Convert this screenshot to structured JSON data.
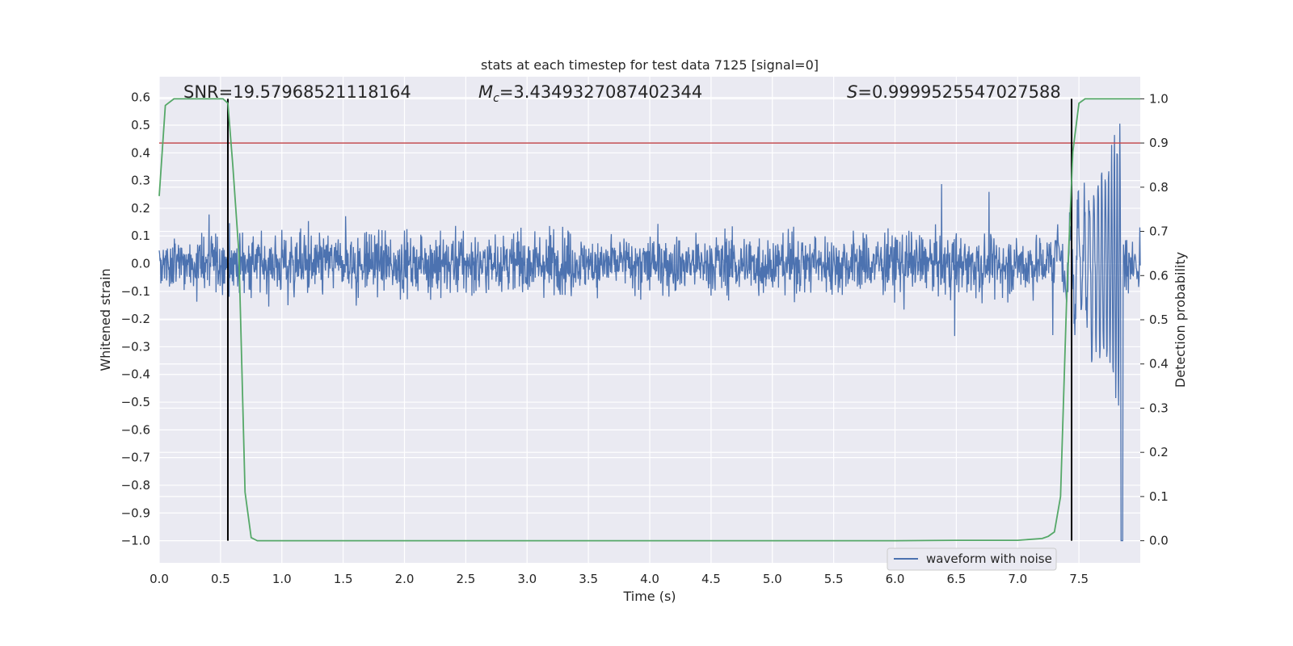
{
  "chart_data": {
    "type": "line",
    "title": "stats at each timestep for test data 7125 [signal=0]",
    "xlabel": "Time (s)",
    "ylabel_left": "Whitened strain",
    "ylabel_right": "Detection probability",
    "xlim": [
      0.0,
      8.0
    ],
    "ylim_left": [
      -1.08,
      0.675
    ],
    "ylim_right": [
      -0.05,
      1.05
    ],
    "x_ticks": [
      "0.0",
      "0.5",
      "1.0",
      "1.5",
      "2.0",
      "2.5",
      "3.0",
      "3.5",
      "4.0",
      "4.5",
      "5.0",
      "5.5",
      "6.0",
      "6.5",
      "7.0",
      "7.5"
    ],
    "y_left_ticks": [
      "0.6",
      "0.5",
      "0.4",
      "0.3",
      "0.2",
      "0.1",
      "0.0",
      "−0.1",
      "−0.2",
      "−0.3",
      "−0.4",
      "−0.5",
      "−0.6",
      "−0.7",
      "−0.8",
      "−0.9",
      "−1.0"
    ],
    "y_right_ticks": [
      "1.0",
      "0.9",
      "0.8",
      "0.7",
      "0.6",
      "0.5",
      "0.4",
      "0.3",
      "0.2",
      "0.1",
      "0.0"
    ],
    "grid": true,
    "legend_location": "lower-right",
    "annotations": {
      "snr": "SNR=19.57968521118164",
      "mc": "=3.4349327087402344",
      "mc_symbol": "M",
      "mc_sub": "c",
      "s": "=0.9999525547027588",
      "s_symbol": "S"
    },
    "series": [
      {
        "name": "waveform with noise",
        "axis": "left",
        "color": "#4c72b0",
        "description_values": {
          "noise_amplitude_typical": 0.2,
          "chirp_start_s": 7.3,
          "chirp_end_s": 7.85
        }
      },
      {
        "axis": "right",
        "color": "#55a868",
        "x": [
          0.0,
          0.05,
          0.12,
          0.45,
          0.52,
          0.56,
          0.6,
          0.65,
          0.7,
          0.75,
          0.8,
          1.0,
          2.0,
          3.0,
          4.0,
          5.0,
          6.0,
          6.5,
          7.0,
          7.2,
          7.25,
          7.3,
          7.35,
          7.4,
          7.45,
          7.5,
          7.55,
          8.0
        ],
        "values": [
          0.78,
          0.985,
          1.0,
          1.0,
          1.0,
          0.99,
          0.85,
          0.65,
          0.11,
          0.007,
          0.0,
          0.0,
          0.0,
          0.0,
          0.0,
          0.0,
          0.0,
          0.001,
          0.001,
          0.005,
          0.01,
          0.02,
          0.1,
          0.55,
          0.88,
          0.99,
          1.0,
          1.0
        ]
      }
    ],
    "threshold_line": {
      "axis": "right",
      "value": 0.9,
      "color": "#c44e52"
    },
    "vertical_lines": [
      0.56,
      7.44
    ],
    "vertical_line_color": "#000000"
  }
}
